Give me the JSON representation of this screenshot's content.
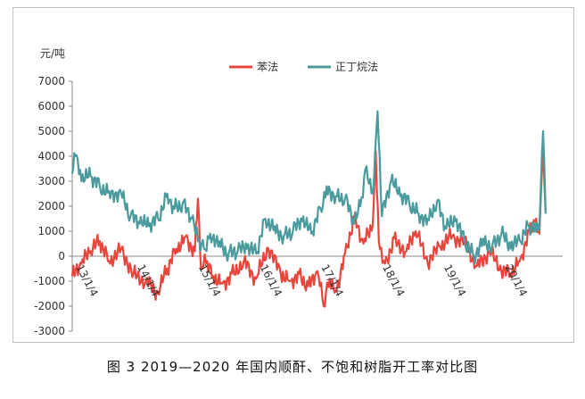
{
  "caption": "图 3  2019—2020 年国内顺酐、不饱和树脂开工率对比图",
  "chart_data": {
    "type": "line",
    "unit_label": "元/吨",
    "ylim": [
      -3000,
      7000
    ],
    "y_ticks": [
      -3000,
      -2000,
      -1000,
      0,
      1000,
      2000,
      3000,
      4000,
      5000,
      6000,
      7000
    ],
    "x_tick_labels": [
      "13/1/4",
      "14/1/4",
      "15/1/4",
      "16/1/4",
      "17/1/4",
      "18/1/4",
      "19/1/4",
      "20/1/4"
    ],
    "x_domain": [
      2013.0,
      2021.0
    ],
    "legend_position": "top",
    "grid": false,
    "colors": {
      "benfa": "#e8453c",
      "zhengding": "#4a9a9e"
    },
    "series": [
      {
        "name": "苯法",
        "color": "#e8453c",
        "x": [
          2013.0,
          2013.15,
          2013.3,
          2013.45,
          2013.6,
          2013.8,
          2014.0,
          2014.2,
          2014.4,
          2014.55,
          2014.7,
          2014.85,
          2015.0,
          2015.05,
          2015.1,
          2015.2,
          2015.3,
          2015.45,
          2015.6,
          2015.8,
          2016.0,
          2016.2,
          2016.4,
          2016.55,
          2016.7,
          2016.85,
          2017.0,
          2017.1,
          2017.2,
          2017.3,
          2017.45,
          2017.6,
          2017.75,
          2017.9,
          2017.95,
          2018.0,
          2018.1,
          2018.25,
          2018.45,
          2018.6,
          2018.8,
          2019.0,
          2019.2,
          2019.4,
          2019.6,
          2019.8,
          2020.0,
          2020.15,
          2020.3,
          2020.45,
          2020.55,
          2020.62,
          2020.68,
          2020.72
        ],
        "values": [
          -800,
          -300,
          200,
          600,
          -200,
          300,
          -700,
          -1000,
          -1500,
          -500,
          300,
          800,
          200,
          2300,
          -500,
          -200,
          -800,
          -1100,
          -700,
          -200,
          -900,
          300,
          -700,
          -1000,
          -700,
          -1200,
          -600,
          -2000,
          -900,
          -1400,
          100,
          1600,
          500,
          1200,
          4200,
          600,
          -300,
          700,
          200,
          1000,
          -300,
          400,
          800,
          600,
          -400,
          200,
          -600,
          -700,
          -200,
          1000,
          1400,
          900,
          4500,
          1800
        ]
      },
      {
        "name": "正丁烷法",
        "color": "#4a9a9e",
        "x": [
          2013.0,
          2013.05,
          2013.15,
          2013.3,
          2013.45,
          2013.6,
          2013.8,
          2013.95,
          2014.1,
          2014.25,
          2014.4,
          2014.55,
          2014.65,
          2014.8,
          2014.95,
          2015.05,
          2015.15,
          2015.25,
          2015.4,
          2015.55,
          2015.7,
          2015.85,
          2016.0,
          2016.15,
          2016.3,
          2016.45,
          2016.6,
          2016.75,
          2016.9,
          2017.05,
          2017.15,
          2017.3,
          2017.45,
          2017.6,
          2017.7,
          2017.8,
          2017.9,
          2017.98,
          2018.05,
          2018.2,
          2018.35,
          2018.5,
          2018.65,
          2018.8,
          2018.95,
          2019.1,
          2019.25,
          2019.4,
          2019.55,
          2019.7,
          2019.85,
          2020.0,
          2020.15,
          2020.3,
          2020.45,
          2020.55,
          2020.62,
          2020.68,
          2020.72
        ],
        "values": [
          3300,
          4000,
          3000,
          3200,
          2800,
          2600,
          2500,
          1600,
          1300,
          1200,
          1500,
          2500,
          2000,
          2100,
          1500,
          600,
          300,
          900,
          600,
          100,
          200,
          300,
          100,
          1500,
          1200,
          800,
          1000,
          1400,
          900,
          1900,
          2800,
          2400,
          2300,
          1300,
          2000,
          3600,
          2500,
          5800,
          1600,
          3000,
          2400,
          2100,
          1700,
          1500,
          2200,
          1100,
          1400,
          600,
          0,
          700,
          400,
          900,
          300,
          600,
          1200,
          1300,
          1100,
          5000,
          1700
        ]
      }
    ]
  }
}
